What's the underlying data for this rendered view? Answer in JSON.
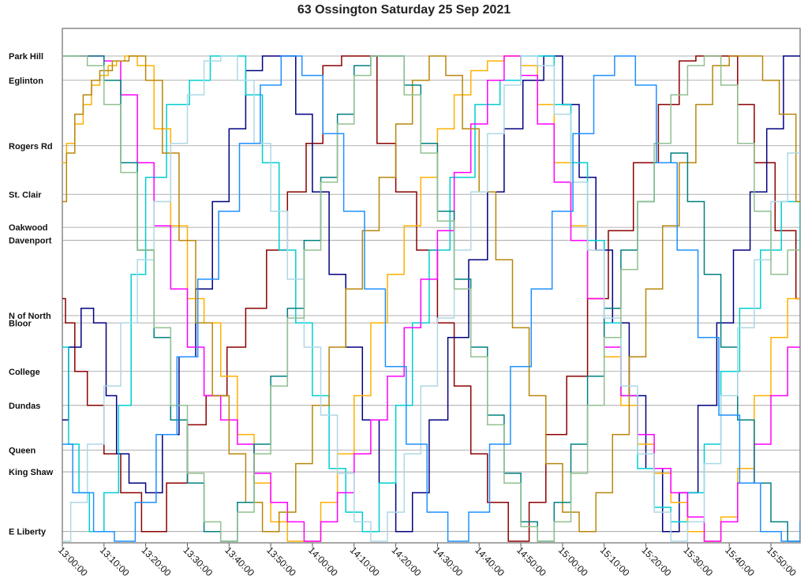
{
  "chart_data": {
    "type": "line",
    "title": "63 Ossington Saturday 25 Sep 2021",
    "xlabel": "",
    "ylabel": "",
    "x_ticks": [
      "13:00:00",
      "13:10:00",
      "13:20:00",
      "13:30:00",
      "13:40:00",
      "13:50:00",
      "14:00:00",
      "14:10:00",
      "14:20:00",
      "14:30:00",
      "14:40:00",
      "14:50:00",
      "15:00:00",
      "15:10:00",
      "15:20:00",
      "15:30:00",
      "15:40:00",
      "15:50:00"
    ],
    "xlim": [
      "13:00:00",
      "15:57:00"
    ],
    "grid": true,
    "legend": "none",
    "stops": [
      {
        "label": "Park Hill",
        "value": 0
      },
      {
        "label": "Eglinton",
        "value": 5
      },
      {
        "label": "Rogers Rd",
        "value": 18.5
      },
      {
        "label": "St. Clair",
        "value": 28.5
      },
      {
        "label": "Oakwood",
        "value": 35.3
      },
      {
        "label": "Davenport",
        "value": 38
      },
      {
        "label": "N of North",
        "value": 53.5
      },
      {
        "label": "Bloor",
        "value": 55
      },
      {
        "label": "College",
        "value": 65
      },
      {
        "label": "Dundas",
        "value": 72
      },
      {
        "label": "Queen",
        "value": 81.2
      },
      {
        "label": "King Shaw",
        "value": 85.7
      },
      {
        "label": "E Liberty",
        "value": 98
      }
    ],
    "series": [
      {
        "color": "#8B0000",
        "x": [
          -0.5,
          2,
          4,
          8,
          12,
          16,
          22,
          28,
          32,
          37,
          42,
          46,
          52,
          56,
          61,
          64,
          70,
          73,
          78,
          82,
          88,
          92,
          96,
          100,
          104,
          110,
          114,
          118,
          124,
          128,
          134,
          140,
          146,
          150,
          154,
          160,
          164,
          168,
          174,
          178
        ],
        "y": [
          50,
          55,
          65,
          72,
          82,
          90,
          98,
          88,
          76,
          70,
          60,
          52,
          40,
          28,
          18,
          2,
          0,
          0,
          18,
          28,
          40,
          55,
          68,
          82,
          92,
          100,
          92,
          78,
          66,
          50,
          36,
          22,
          10,
          1,
          0,
          0,
          10,
          22,
          36,
          50
        ]
      },
      {
        "color": "#000080",
        "x": [
          0,
          3,
          6,
          9,
          12,
          14,
          18,
          22,
          26,
          30,
          34,
          38,
          42,
          46,
          50,
          54,
          58,
          62,
          66,
          70,
          74,
          78,
          82,
          86,
          90,
          95,
          100,
          104,
          108,
          113,
          118,
          122,
          126,
          130,
          134,
          138,
          142,
          146,
          150,
          155,
          159,
          163,
          167,
          171,
          175,
          179
        ],
        "y": [
          75,
          60,
          52,
          55,
          70,
          82,
          88,
          90,
          78,
          62,
          48,
          30,
          15,
          3,
          0,
          0,
          12,
          28,
          45,
          60,
          75,
          88,
          98,
          90,
          75,
          58,
          42,
          28,
          15,
          5,
          0,
          10,
          25,
          40,
          55,
          70,
          85,
          98,
          90,
          72,
          55,
          40,
          28,
          15,
          0,
          0
        ]
      },
      {
        "color": "#00CED1",
        "x": [
          0,
          3,
          5,
          8,
          12,
          15,
          18,
          22,
          28,
          33,
          38,
          42,
          46,
          50,
          54,
          58,
          62,
          66,
          70,
          74,
          78,
          82,
          86,
          90,
          96,
          102,
          108,
          112,
          116,
          120,
          124,
          128,
          132,
          136,
          140,
          144,
          148,
          152,
          156,
          160,
          165,
          170,
          175,
          179
        ],
        "y": [
          60,
          80,
          90,
          98,
          90,
          72,
          45,
          25,
          10,
          5,
          0,
          0,
          8,
          22,
          40,
          55,
          70,
          85,
          94,
          98,
          88,
          72,
          55,
          40,
          25,
          10,
          5,
          0,
          0,
          10,
          22,
          38,
          55,
          70,
          85,
          93,
          96,
          90,
          80,
          65,
          52,
          40,
          30,
          40
        ]
      },
      {
        "color": "#FFB000",
        "x": [
          0,
          2,
          4,
          6,
          8,
          10,
          12,
          14,
          16,
          20,
          24,
          28,
          32,
          36,
          40,
          44,
          48,
          52,
          56,
          60,
          64,
          68,
          72,
          76,
          80,
          84,
          88,
          92,
          96,
          100,
          104,
          108,
          112,
          116,
          120,
          124,
          128,
          132,
          136,
          140,
          144,
          148,
          152,
          156,
          160,
          164,
          168,
          172,
          176,
          179
        ],
        "y": [
          22,
          18,
          14,
          10,
          6,
          4,
          2,
          1,
          0,
          2,
          15,
          35,
          50,
          55,
          66,
          78,
          88,
          96,
          100,
          100,
          92,
          82,
          70,
          55,
          45,
          35,
          25,
          15,
          8,
          3,
          1,
          0,
          2,
          10,
          22,
          35,
          50,
          62,
          72,
          80,
          86,
          92,
          98,
          100,
          95,
          85,
          70,
          58,
          50,
          45
        ]
      },
      {
        "color": "#FF00FF",
        "x": [
          4,
          8,
          12,
          16,
          20,
          24,
          28,
          32,
          36,
          40,
          44,
          48,
          52,
          56,
          60,
          64,
          68,
          72,
          76,
          80,
          84,
          88,
          92,
          96,
          100,
          104,
          108,
          112,
          116,
          120,
          124,
          128,
          132,
          136,
          140,
          144,
          148,
          152,
          156,
          160,
          164,
          168,
          172,
          176,
          179
        ],
        "y": [
          0,
          0,
          1,
          8,
          22,
          35,
          48,
          60,
          70,
          75,
          80,
          86,
          92,
          96,
          100,
          96,
          90,
          82,
          75,
          66,
          56,
          46,
          36,
          24,
          14,
          5,
          0,
          4,
          14,
          26,
          38,
          50,
          60,
          70,
          78,
          85,
          90,
          95,
          100,
          96,
          88,
          80,
          70,
          60,
          48
        ]
      },
      {
        "color": "#B8860B",
        "x": [
          0,
          2,
          4,
          6,
          8,
          10,
          14,
          18,
          22,
          26,
          30,
          34,
          38,
          42,
          46,
          50,
          54,
          58,
          62,
          66,
          70,
          74,
          78,
          82,
          86,
          90,
          94,
          98,
          102,
          106,
          110,
          114,
          118,
          122,
          126,
          130,
          134,
          138,
          142,
          146,
          150,
          154,
          158,
          162,
          166,
          170,
          174,
          178
        ],
        "y": [
          30,
          20,
          12,
          8,
          5,
          3,
          1,
          0,
          5,
          20,
          38,
          55,
          70,
          82,
          92,
          98,
          94,
          84,
          72,
          60,
          48,
          36,
          25,
          14,
          5,
          0,
          4,
          15,
          28,
          42,
          56,
          70,
          84,
          94,
          98,
          90,
          78,
          62,
          48,
          35,
          22,
          10,
          2,
          0,
          0,
          5,
          12,
          30
        ]
      },
      {
        "color": "#008080",
        "x": [
          0,
          4,
          8,
          12,
          16,
          20,
          24,
          28,
          32,
          36,
          40,
          44,
          48,
          52,
          56,
          60,
          64,
          68,
          72,
          76,
          80,
          84,
          88,
          92,
          96,
          100,
          104,
          108,
          112,
          116,
          120,
          124,
          128,
          132,
          136,
          140,
          144,
          148,
          152,
          156,
          160,
          164,
          168,
          172,
          176,
          179
        ],
        "y": [
          0,
          0,
          0,
          5,
          22,
          40,
          58,
          75,
          88,
          98,
          100,
          92,
          80,
          66,
          52,
          38,
          25,
          12,
          2,
          0,
          0,
          6,
          18,
          32,
          46,
          60,
          74,
          86,
          96,
          100,
          92,
          80,
          66,
          52,
          40,
          30,
          22,
          20,
          30,
          45,
          60,
          75,
          88,
          96,
          100,
          100
        ]
      },
      {
        "color": "#ADD8E6",
        "x": [
          0,
          4,
          8,
          12,
          16,
          20,
          24,
          28,
          32,
          36,
          40,
          44,
          48,
          52,
          56,
          60,
          64,
          68,
          72,
          76,
          80,
          84,
          88,
          92,
          96,
          100,
          104,
          108,
          112,
          116,
          120,
          124,
          128,
          132,
          136,
          140,
          144,
          148,
          152,
          156,
          160,
          164,
          168,
          172,
          176,
          179
        ],
        "y": [
          100,
          92,
          80,
          68,
          55,
          42,
          30,
          18,
          8,
          1,
          0,
          5,
          18,
          32,
          46,
          60,
          74,
          86,
          96,
          100,
          94,
          82,
          68,
          54,
          40,
          28,
          16,
          6,
          0,
          2,
          12,
          26,
          40,
          54,
          68,
          82,
          94,
          100,
          96,
          84,
          70,
          56,
          42,
          30,
          20,
          15
        ]
      },
      {
        "color": "#90C090",
        "x": [
          0,
          4,
          8,
          12,
          16,
          20,
          24,
          28,
          32,
          36,
          40,
          44,
          48,
          52,
          56,
          60,
          64,
          68,
          72,
          76,
          80,
          84,
          88,
          92,
          96,
          100,
          104,
          108,
          112,
          116,
          120,
          124,
          128,
          132,
          136,
          140,
          144,
          148,
          152,
          156,
          160,
          164,
          168,
          172,
          176,
          179
        ],
        "y": [
          0,
          0,
          2,
          10,
          24,
          40,
          56,
          72,
          86,
          96,
          100,
          94,
          82,
          68,
          54,
          40,
          26,
          14,
          4,
          0,
          0,
          8,
          20,
          34,
          48,
          62,
          76,
          88,
          97,
          100,
          96,
          86,
          72,
          58,
          44,
          30,
          18,
          8,
          2,
          0,
          6,
          18,
          32,
          45,
          40,
          38
        ]
      },
      {
        "color": "#1E90FF",
        "x": [
          0,
          5,
          10,
          15,
          20,
          25,
          30,
          35,
          40,
          45,
          50,
          55,
          60,
          65,
          70,
          75,
          80,
          85,
          90,
          95,
          100,
          105,
          110,
          115,
          120,
          125,
          130,
          135,
          140,
          145,
          150,
          155,
          160,
          165,
          170,
          175,
          179
        ],
        "y": [
          80,
          90,
          98,
          100,
          92,
          78,
          62,
          46,
          32,
          18,
          6,
          0,
          4,
          16,
          32,
          48,
          64,
          80,
          94,
          100,
          94,
          80,
          64,
          48,
          32,
          16,
          4,
          0,
          6,
          22,
          40,
          58,
          74,
          88,
          98,
          100,
          96
        ]
      }
    ]
  }
}
